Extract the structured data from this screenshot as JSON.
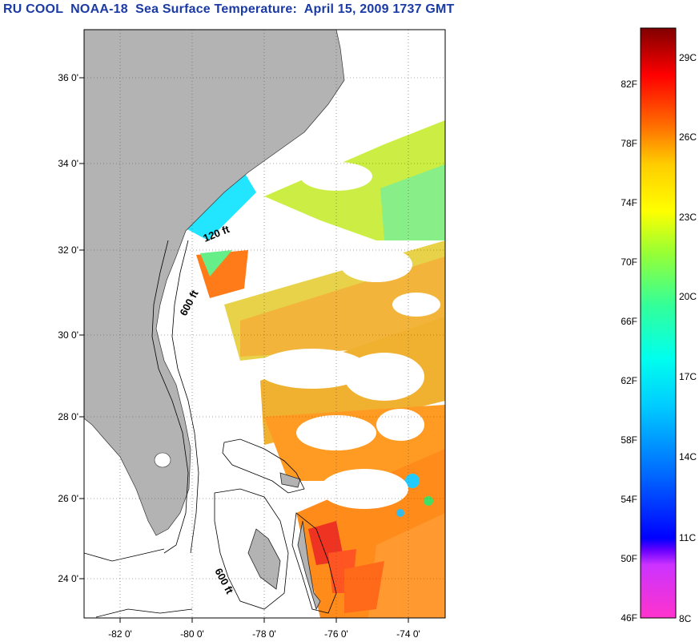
{
  "title": "RU COOL  NOAA-18  Sea Surface Temperature:  April 15, 2009 1737 GMT",
  "map": {
    "lat_labels": [
      "36 0'",
      "34 0'",
      "32 0'",
      "30 0'",
      "28 0'",
      "26 0'",
      "24 0'"
    ],
    "lon_labels": [
      "-82 0'",
      "-80 0'",
      "-78 0'",
      "-76 0'",
      "-74 0'"
    ],
    "contour_labels": [
      "120 ft",
      "600 ft",
      "600 ft"
    ],
    "colors": {
      "land": "#b3b3b3",
      "ocean": "#ffffff",
      "grid": "#666666"
    }
  },
  "colorbar": {
    "fahrenheit_labels": [
      "82F",
      "78F",
      "74F",
      "70F",
      "66F",
      "62F",
      "58F",
      "54F",
      "50F",
      "46F"
    ],
    "celsius_labels": [
      "29C",
      "26C",
      "23C",
      "20C",
      "17C",
      "14C",
      "11C",
      "8C"
    ]
  }
}
